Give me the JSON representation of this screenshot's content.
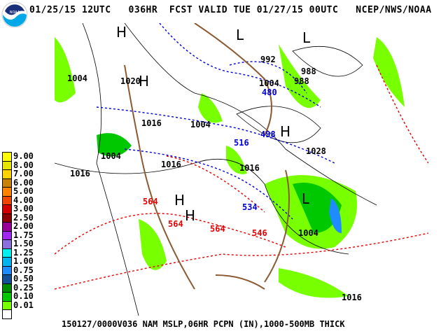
{
  "header": {
    "logo_text": "NOAA",
    "title": "01/25/15 12UTC   036HR  FCST VALID TUE 01/27/15 00UTC   NCEP/NWS/NOAA"
  },
  "footer": "150127/0000V036 NAM MSLP,06HR PCPN (IN),1000-500MB THICK",
  "legend": {
    "items": [
      {
        "label": "9.00",
        "color": "#ffff00"
      },
      {
        "label": "8.00",
        "color": "#e6e600"
      },
      {
        "label": "7.00",
        "color": "#ffd200"
      },
      {
        "label": "6.00",
        "color": "#c8820a"
      },
      {
        "label": "5.00",
        "color": "#ff8200"
      },
      {
        "label": "4.00",
        "color": "#f04600"
      },
      {
        "label": "3.00",
        "color": "#d20000"
      },
      {
        "label": "2.50",
        "color": "#8c0000"
      },
      {
        "label": "2.00",
        "color": "#960096"
      },
      {
        "label": "1.75",
        "color": "#a028f0"
      },
      {
        "label": "1.50",
        "color": "#8c6edc"
      },
      {
        "label": "1.25",
        "color": "#00f0f0"
      },
      {
        "label": "1.00",
        "color": "#00b4f0"
      },
      {
        "label": "0.75",
        "color": "#1e8cff"
      },
      {
        "label": "0.50",
        "color": "#145096"
      },
      {
        "label": "0.25",
        "color": "#008c00"
      },
      {
        "label": "0.10",
        "color": "#00c800"
      },
      {
        "label": "0.01",
        "color": "#78ff00"
      },
      {
        "label": "",
        "color": "#ffffff"
      }
    ]
  },
  "map": {
    "colors": {
      "isobar": "#000000",
      "cold_thickness": "#0000dc",
      "warm_thickness": "#e60000",
      "coast": "#8c5a32"
    },
    "centers": [
      {
        "label": "H"
      },
      {
        "label": "L"
      },
      {
        "label": "L"
      },
      {
        "label": "H"
      },
      {
        "label": "H"
      },
      {
        "label": "H"
      },
      {
        "label": "L"
      },
      {
        "label": "H"
      }
    ],
    "isobars": [
      "1004",
      "1020",
      "1016",
      "1004",
      "992",
      "1004",
      "988",
      "988",
      "1004",
      "1016",
      "1016",
      "1016",
      "1028",
      "1004",
      "1016"
    ],
    "thickness_cold": [
      "480",
      "498",
      "516",
      "534"
    ],
    "thickness_warm": [
      "564",
      "564",
      "564",
      "546"
    ]
  }
}
